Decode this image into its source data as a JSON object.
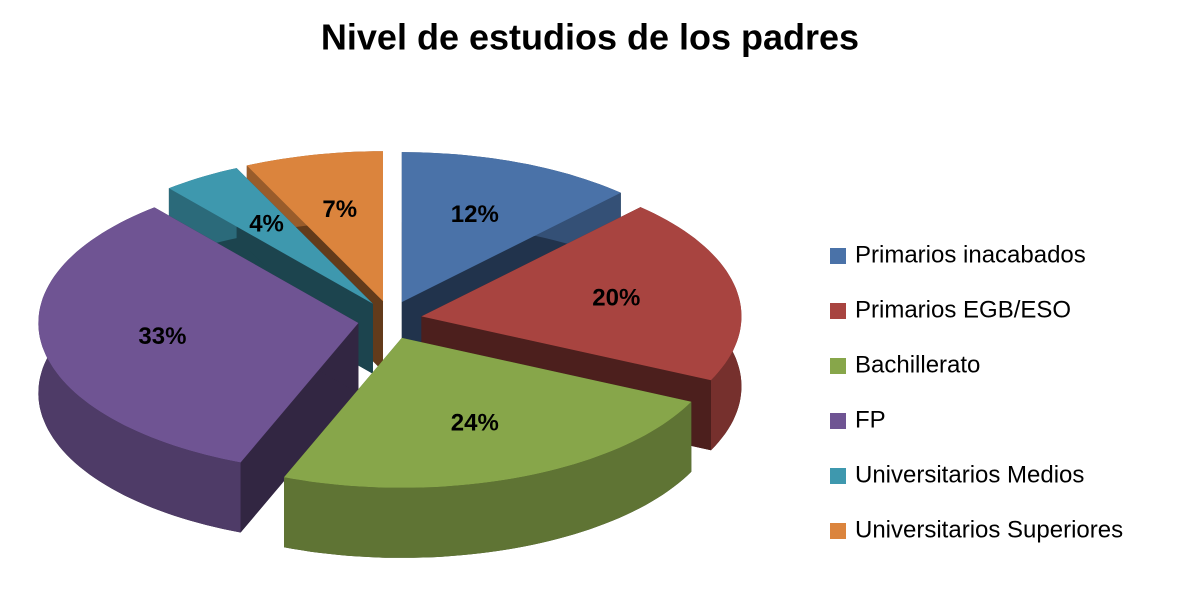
{
  "chart_data": {
    "type": "pie",
    "title": "Nivel de estudios de los padres",
    "categories": [
      "Primarios inacabados",
      "Primarios EGB/ESO",
      "Bachillerato",
      "FP",
      "Universitarios Medios",
      "Universitarios Superiores"
    ],
    "values": [
      12,
      20,
      24,
      33,
      4,
      7
    ],
    "value_labels": [
      "12%",
      "20%",
      "24%",
      "33%",
      "4%",
      "7%"
    ],
    "colors": [
      "#4a72a8",
      "#a84440",
      "#87a64a",
      "#6f5493",
      "#3e98ae",
      "#db843d"
    ],
    "legend": "right"
  }
}
